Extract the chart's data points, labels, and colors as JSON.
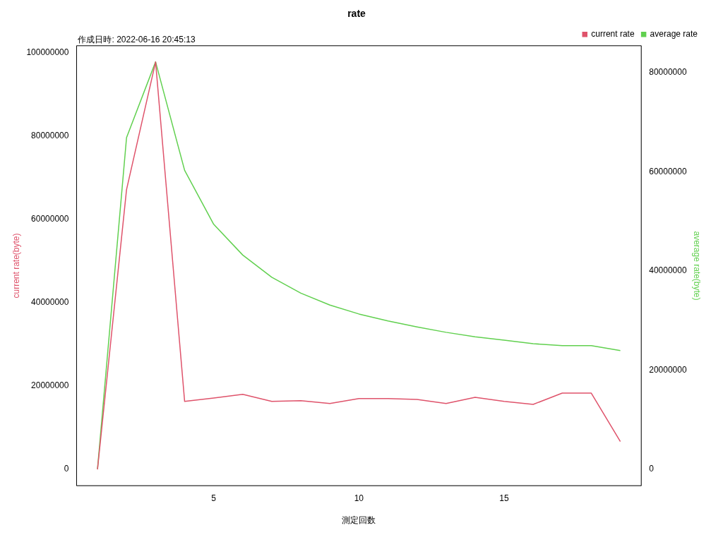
{
  "chart_data": {
    "type": "line",
    "title": "rate",
    "xlabel": "測定回数",
    "ylabel": "current rate(byte)",
    "y2label": "average rate(byte)",
    "annotations": [
      "作成日時: 2022-06-16 20:45:13"
    ],
    "x": [
      1,
      2,
      3,
      4,
      5,
      6,
      7,
      8,
      9,
      10,
      11,
      12,
      13,
      14,
      15,
      16,
      17,
      18,
      19
    ],
    "xlim": [
      0.28,
      19.72
    ],
    "xticks": [
      5,
      10,
      15
    ],
    "ylim": [
      -3900000,
      101600000
    ],
    "yticks": [
      0,
      20000000,
      40000000,
      60000000,
      80000000,
      100000000
    ],
    "y2lim": [
      -3360000,
      85450000
    ],
    "y2ticks": [
      0,
      20000000,
      40000000,
      60000000,
      80000000
    ],
    "series": [
      {
        "name": "average rate",
        "color": "#61d04f",
        "axis": "y2",
        "values": [
          0,
          66900000,
          82200000,
          60300000,
          49400000,
          43200000,
          38700000,
          35500000,
          33100000,
          31300000,
          29900000,
          28700000,
          27600000,
          26700000,
          26000000,
          25300000,
          24900000,
          24900000,
          23900000
        ]
      },
      {
        "name": "current rate",
        "color": "#df536b",
        "axis": "y",
        "values": [
          0,
          67100000,
          97700000,
          16300000,
          17100000,
          18000000,
          16300000,
          16500000,
          15800000,
          17000000,
          17000000,
          16800000,
          15800000,
          17300000,
          16300000,
          15600000,
          18300000,
          18300000,
          6700000
        ]
      }
    ],
    "grid": false,
    "legend": "top right",
    "marker": "none",
    "line_style": "solid"
  }
}
